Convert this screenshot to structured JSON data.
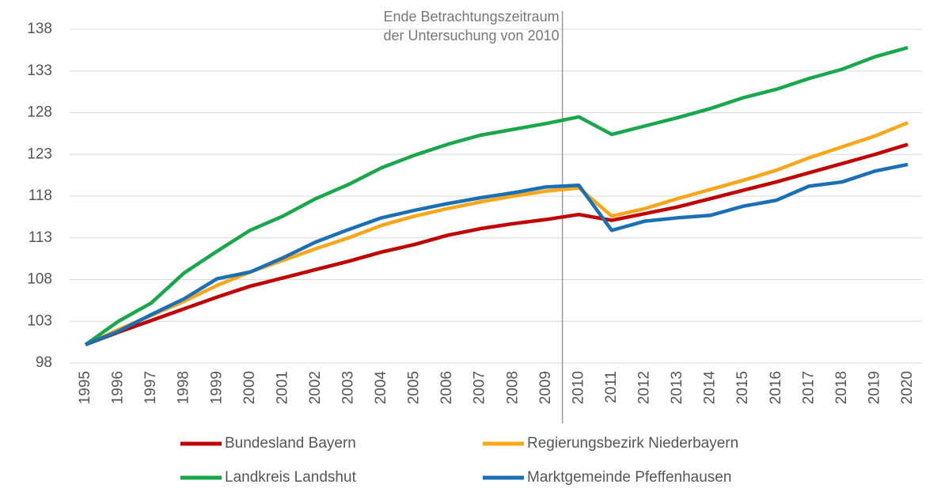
{
  "chart_data": {
    "type": "line",
    "annotation": [
      "Ende Betrachtungszeitraum",
      "der Untersuchung von 2010"
    ],
    "categories": [
      "1995",
      "1996",
      "1997",
      "1998",
      "1999",
      "2000",
      "2001",
      "2002",
      "2003",
      "2004",
      "2005",
      "2006",
      "2007",
      "2008",
      "2009",
      "2010",
      "2011",
      "2012",
      "2013",
      "2014",
      "2015",
      "2016",
      "2017",
      "2018",
      "2019",
      "2020"
    ],
    "ylim": [
      98,
      138
    ],
    "yticks": [
      98,
      103,
      108,
      113,
      118,
      123,
      128,
      133,
      138
    ],
    "grid": true,
    "series": [
      {
        "name": "Bundesland Bayern",
        "color": "#c00000",
        "values": [
          100.2,
          101.7,
          103.1,
          104.5,
          105.9,
          107.2,
          108.2,
          109.2,
          110.2,
          111.3,
          112.2,
          113.3,
          114.1,
          114.7,
          115.2,
          115.8,
          115.1,
          115.9,
          116.7,
          117.7,
          118.7,
          119.7,
          120.8,
          121.9,
          123.0,
          124.2
        ]
      },
      {
        "name": "Regierungsbezirk Niederbayern",
        "color": "#f9a61a",
        "values": [
          100.2,
          102.0,
          103.7,
          105.4,
          107.3,
          108.9,
          110.3,
          111.7,
          113.0,
          114.5,
          115.6,
          116.5,
          117.3,
          118.0,
          118.6,
          119.0,
          115.6,
          116.5,
          117.7,
          118.8,
          119.9,
          121.1,
          122.6,
          123.9,
          125.2,
          126.8
        ]
      },
      {
        "name": "Landkreis Landshut",
        "color": "#1aa64a",
        "values": [
          100.2,
          103.0,
          105.2,
          108.8,
          111.4,
          113.9,
          115.6,
          117.7,
          119.4,
          121.4,
          122.9,
          124.2,
          125.3,
          126.0,
          126.7,
          127.5,
          125.4,
          126.4,
          127.4,
          128.5,
          129.8,
          130.8,
          132.1,
          133.2,
          134.7,
          135.8
        ]
      },
      {
        "name": "Marktgemeinde Pfeffenhausen",
        "color": "#1a6fb5",
        "values": [
          100.2,
          101.8,
          103.8,
          105.7,
          108.1,
          108.9,
          110.6,
          112.5,
          114.0,
          115.4,
          116.3,
          117.1,
          117.8,
          118.4,
          119.1,
          119.3,
          113.9,
          115.0,
          115.4,
          115.7,
          116.8,
          117.5,
          119.2,
          119.7,
          121.0,
          121.8
        ]
      }
    ]
  }
}
